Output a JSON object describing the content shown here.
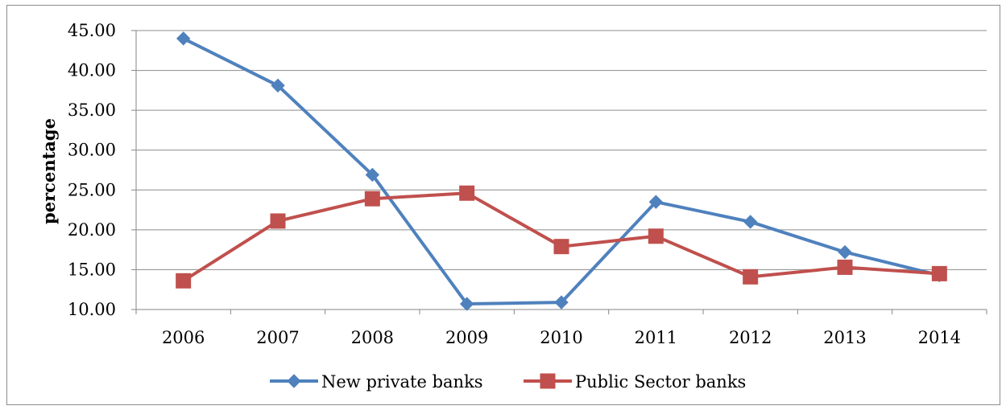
{
  "chart_data": {
    "type": "line",
    "ylabel": "percentage",
    "ylim": [
      10,
      45
    ],
    "yticks": [
      "10.00",
      "15.00",
      "20.00",
      "25.00",
      "30.00",
      "35.00",
      "40.00",
      "45.00"
    ],
    "categories": [
      "2006",
      "2007",
      "2008",
      "2009",
      "2010",
      "2011",
      "2012",
      "2013",
      "2014"
    ],
    "grid": "horizontal",
    "legend_position": "bottom",
    "series": [
      {
        "name": "New private banks",
        "color": "#4F81BD",
        "marker": "diamond",
        "values": [
          44.0,
          38.1,
          26.9,
          10.7,
          10.9,
          23.5,
          21.0,
          17.2,
          14.3
        ]
      },
      {
        "name": "Public Sector banks",
        "color": "#C0504D",
        "marker": "square",
        "values": [
          13.6,
          21.1,
          23.9,
          24.6,
          17.9,
          19.2,
          14.1,
          15.3,
          14.5
        ]
      }
    ]
  }
}
